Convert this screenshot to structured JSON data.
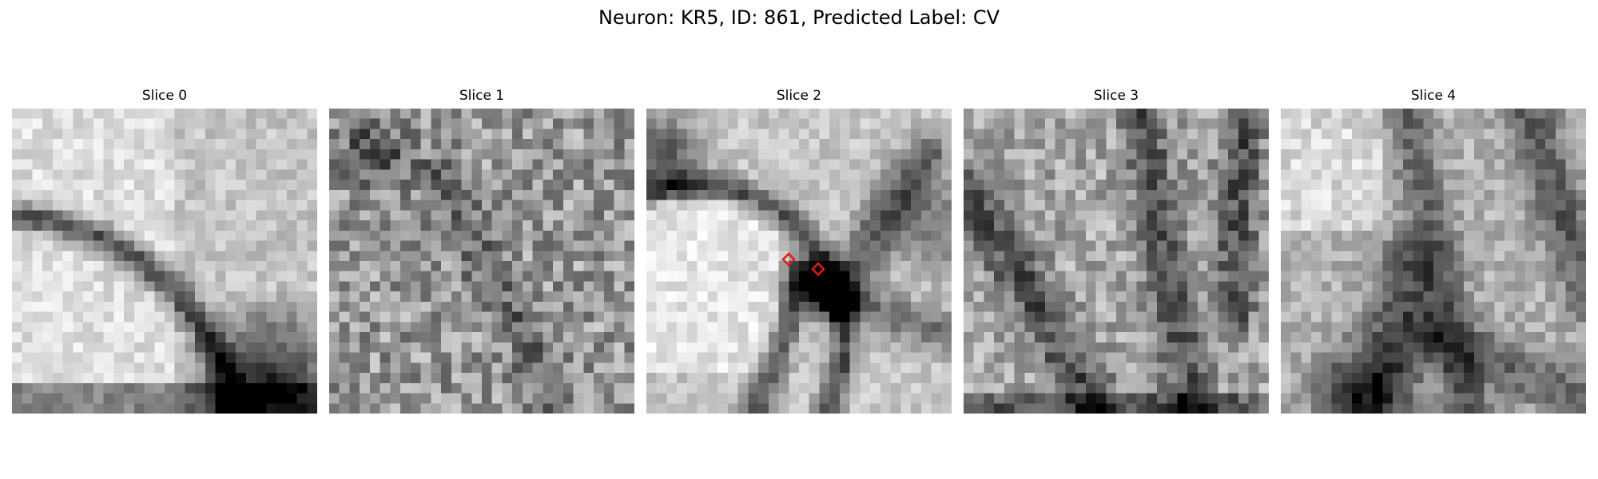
{
  "figure": {
    "title": "Neuron: KR5, ID: 861, Predicted Label: CV"
  },
  "slices": [
    {
      "title": "Slice 0",
      "seed": 11,
      "noise": 0.1,
      "pattern": "slice0"
    },
    {
      "title": "Slice 1",
      "seed": 23,
      "noise": 0.22,
      "pattern": "slice1"
    },
    {
      "title": "Slice 2",
      "seed": 37,
      "noise": 0.1,
      "pattern": "slice2"
    },
    {
      "title": "Slice 3",
      "seed": 51,
      "noise": 0.18,
      "pattern": "slice3"
    },
    {
      "title": "Slice 4",
      "seed": 67,
      "noise": 0.12,
      "pattern": "slice4"
    }
  ],
  "marker_color": "#e31a1c",
  "colormap": "gray"
}
